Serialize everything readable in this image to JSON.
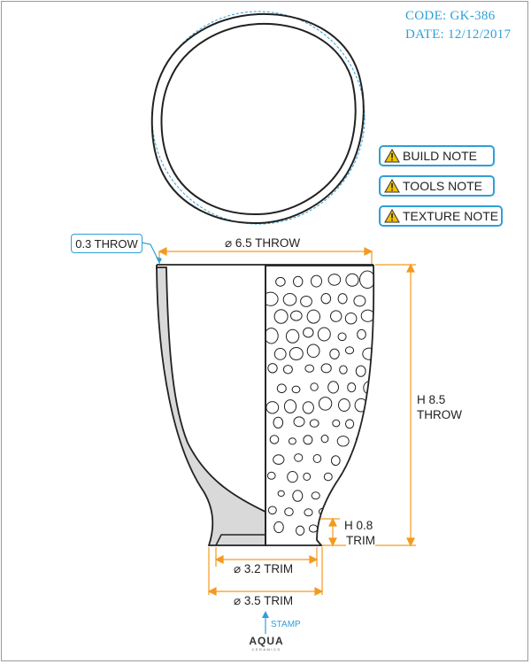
{
  "header": {
    "code": "CODE: GK-386",
    "date": "DATE: 12/12/2017"
  },
  "notes": [
    {
      "label": "BUILD NOTE"
    },
    {
      "label": "TOOLS NOTE"
    },
    {
      "label": "TEXTURE NOTE"
    }
  ],
  "callout": {
    "wall": "0.3 THROW"
  },
  "dimensions": {
    "rim_diameter": "⌀ 6.5 THROW",
    "height_line1": "H 8.5",
    "height_line2": "THROW",
    "foot_height_line1": "H 0.8",
    "foot_height_line2": "TRIM",
    "foot_inner": "⌀ 3.2 TRIM",
    "foot_outer": "⌀ 3.5 TRIM"
  },
  "stamp": {
    "label": "STAMP"
  },
  "logo": {
    "name": "AQUA",
    "sub": "CERAMICS"
  },
  "colors": {
    "accent": "#2e9fd8",
    "dimension": "#f39a1f",
    "section": "#d9d9d9",
    "line": "#222222"
  }
}
